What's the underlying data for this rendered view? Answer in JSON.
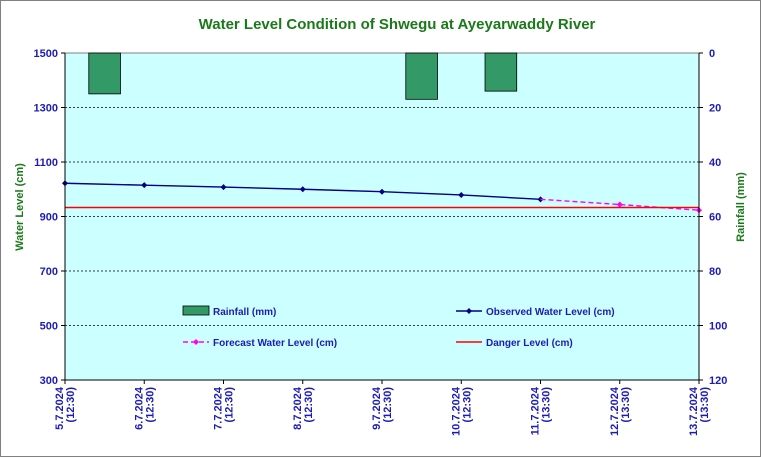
{
  "chart_data": {
    "type": "line",
    "title": "Water Level Condition of Shwegu at Ayeyarwaddy River",
    "ylabel": "Water Level (cm)",
    "y2label": "Rainfall (mm)",
    "ylim": [
      300,
      1500
    ],
    "y2lim": [
      0,
      120
    ],
    "y2_inverted": true,
    "yticks": [
      300,
      500,
      700,
      900,
      1100,
      1300,
      1500
    ],
    "y2ticks": [
      0,
      20,
      40,
      60,
      80,
      100,
      120
    ],
    "categories": [
      [
        "5.7.2024",
        "(12:30)"
      ],
      [
        "6.7.2024",
        "(12:30)"
      ],
      [
        "7.7.2024",
        "(12:30)"
      ],
      [
        "8.7.2024",
        "(12:30)"
      ],
      [
        "9.7.2024",
        "(12:30)"
      ],
      [
        "10.7.2024",
        "(12:30)"
      ],
      [
        "11.7.2024",
        "(13:30)"
      ],
      [
        "12.7.2024",
        "(13:30)"
      ],
      [
        "13.7.2024",
        "(13:30)"
      ]
    ],
    "grid": true,
    "background": "#ccffff",
    "series": [
      {
        "name": "Rainfall (mm)",
        "kind": "bar",
        "axis": "y2",
        "color": "#339966",
        "points": [
          {
            "x": 0.5,
            "value": 15
          },
          {
            "x": 4.5,
            "value": 17
          },
          {
            "x": 5.5,
            "value": 14
          }
        ]
      },
      {
        "name": "Observed Water Level (cm)",
        "kind": "line",
        "axis": "y",
        "color": "#000080",
        "marker": "diamond",
        "points": [
          {
            "x": 0,
            "value": 1022
          },
          {
            "x": 1,
            "value": 1015
          },
          {
            "x": 2,
            "value": 1008
          },
          {
            "x": 3,
            "value": 1000
          },
          {
            "x": 4,
            "value": 991
          },
          {
            "x": 5,
            "value": 979
          },
          {
            "x": 6,
            "value": 963
          }
        ]
      },
      {
        "name": "Forecast Water Level (cm)",
        "kind": "line",
        "axis": "y",
        "color": "#ff00ff",
        "marker": "diamond",
        "dashed": true,
        "points": [
          {
            "x": 6,
            "value": 963
          },
          {
            "x": 7,
            "value": 944
          },
          {
            "x": 8,
            "value": 923
          }
        ]
      },
      {
        "name": "Danger Level (cm)",
        "kind": "line",
        "axis": "y",
        "color": "#ff0000",
        "points": [
          {
            "x": 0,
            "value": 933
          },
          {
            "x": 8,
            "value": 933
          }
        ]
      }
    ],
    "legend": [
      {
        "name": "Rainfall (mm)",
        "symbol": "bar",
        "color": "#339966"
      },
      {
        "name": "Observed Water Level (cm)",
        "symbol": "line-diamond",
        "color": "#000080"
      },
      {
        "name": "Forecast Water Level (cm)",
        "symbol": "dashed-diamond",
        "color": "#ff00ff"
      },
      {
        "name": "Danger Level (cm)",
        "symbol": "line",
        "color": "#ff0000"
      }
    ]
  }
}
